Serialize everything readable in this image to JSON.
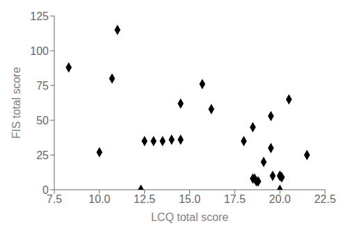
{
  "chart_data": {
    "type": "scatter",
    "x": [
      8.3,
      10.0,
      10.7,
      11.0,
      12.5,
      13.0,
      13.5,
      14.0,
      14.5,
      14.5,
      15.7,
      16.2,
      12.3,
      18.0,
      18.5,
      18.5,
      18.6,
      18.7,
      18.8,
      19.1,
      19.5,
      19.5,
      19.6,
      20.0,
      20.0,
      20.1,
      20.1,
      20.0,
      20.5,
      21.5
    ],
    "values": [
      88,
      27,
      80,
      115,
      35,
      35,
      35,
      36,
      62,
      36,
      76,
      58,
      0,
      35,
      45,
      8,
      8,
      6,
      6,
      20,
      53,
      30,
      10,
      10,
      10,
      9,
      9,
      0,
      65,
      25
    ],
    "xlabel": "LCQ total score",
    "ylabel": "FIS total score",
    "xlim": [
      7.5,
      22.5
    ],
    "ylim": [
      0,
      125
    ],
    "xticks": [
      7.5,
      {
        "value": 10,
        "label": "10.0"
      },
      12.5,
      {
        "value": 15,
        "label": "15.0"
      },
      17.5,
      {
        "value": 20,
        "label": "20.0"
      },
      22.5
    ],
    "yticks": [
      0,
      25,
      50,
      75,
      100,
      125
    ],
    "marker": "diamond",
    "color": "#000000",
    "grid": false
  }
}
